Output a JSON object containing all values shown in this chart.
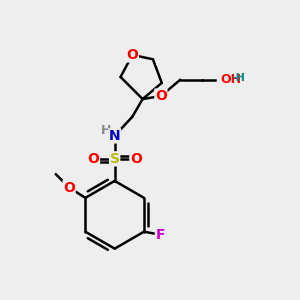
{
  "bg_color": "#eeeeee",
  "atom_colors": {
    "O": "#ff0000",
    "N": "#0000bb",
    "S": "#bbbb00",
    "F": "#cc00cc",
    "C": "#000000",
    "H": "#888888"
  },
  "bond_color": "#000000",
  "bond_width": 1.8,
  "font_size_atom": 10,
  "figsize": [
    3.0,
    3.0
  ],
  "dpi": 100
}
